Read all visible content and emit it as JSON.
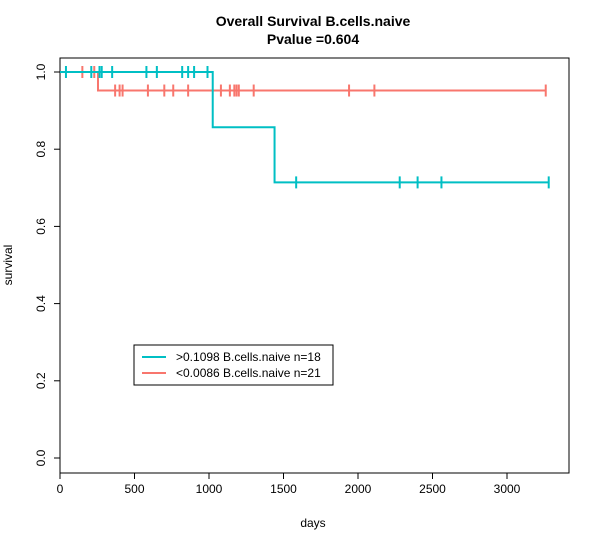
{
  "chart_data": {
    "type": "line",
    "subtype": "kaplan-meier",
    "title": "Overall Survival B.cells.naive",
    "subtitle": "Pvalue =0.604",
    "xlabel": "days",
    "ylabel": "survival",
    "xlim": [
      0,
      3400
    ],
    "ylim": [
      0.0,
      1.0
    ],
    "x_ticks": [
      0,
      500,
      1000,
      1500,
      2000,
      2500,
      3000
    ],
    "y_ticks": [
      0.0,
      0.2,
      0.4,
      0.6,
      0.8,
      1.0
    ],
    "x_tick_labels": [
      "0",
      "500",
      "1000",
      "1500",
      "2000",
      "2500",
      "3000"
    ],
    "y_tick_labels": [
      "0.0",
      "0.2",
      "0.4",
      "0.6",
      "0.8",
      "1.0"
    ],
    "grid": false,
    "legend_position": "bottom-left",
    "series": [
      {
        "name": ">0.1098 B.cells.naive n=18",
        "color": "#00BFC4",
        "steps": [
          [
            0,
            1.0
          ],
          [
            1025,
            0.857
          ],
          [
            1440,
            0.714
          ],
          [
            3280,
            0.714
          ]
        ],
        "censored": [
          [
            40,
            1.0
          ],
          [
            210,
            1.0
          ],
          [
            265,
            1.0
          ],
          [
            280,
            1.0
          ],
          [
            350,
            1.0
          ],
          [
            580,
            1.0
          ],
          [
            650,
            1.0
          ],
          [
            820,
            1.0
          ],
          [
            860,
            1.0
          ],
          [
            900,
            1.0
          ],
          [
            990,
            1.0
          ],
          [
            1585,
            0.714
          ],
          [
            2280,
            0.714
          ],
          [
            2400,
            0.714
          ],
          [
            2560,
            0.714
          ],
          [
            3280,
            0.714
          ]
        ]
      },
      {
        "name": "<0.0086 B.cells.naive n=21",
        "color": "#F8766D",
        "steps": [
          [
            0,
            1.0
          ],
          [
            255,
            0.952
          ],
          [
            3260,
            0.952
          ]
        ],
        "censored": [
          [
            150,
            1.0
          ],
          [
            230,
            1.0
          ],
          [
            370,
            0.952
          ],
          [
            400,
            0.952
          ],
          [
            420,
            0.952
          ],
          [
            590,
            0.952
          ],
          [
            700,
            0.952
          ],
          [
            760,
            0.952
          ],
          [
            860,
            0.952
          ],
          [
            1080,
            0.952
          ],
          [
            1140,
            0.952
          ],
          [
            1170,
            0.952
          ],
          [
            1185,
            0.952
          ],
          [
            1200,
            0.952
          ],
          [
            1300,
            0.952
          ],
          [
            1940,
            0.952
          ],
          [
            2110,
            0.952
          ],
          [
            3260,
            0.952
          ]
        ]
      }
    ]
  }
}
